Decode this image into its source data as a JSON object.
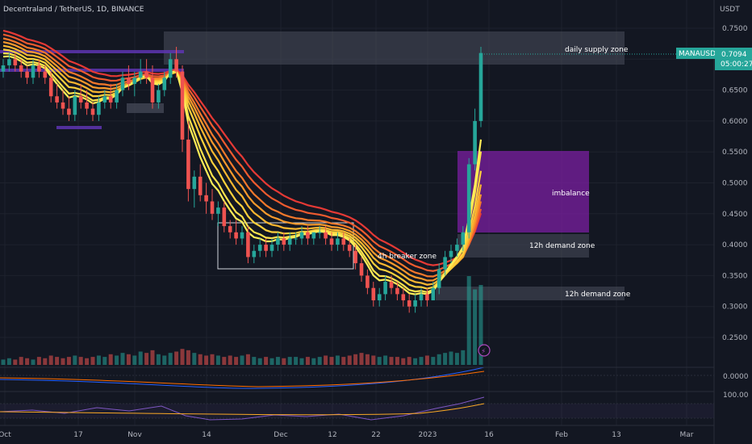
{
  "header": {
    "title": "Decentraland / TetherUS, 1D, BINANCE",
    "currency": "USDT"
  },
  "price_badge": {
    "symbol": "MANAUSDT",
    "price": "0.7094",
    "countdown": "05:00:27"
  },
  "macd_label": "0.0000",
  "rsi_label": "100.00",
  "colors": {
    "bull": "#26a69a",
    "bear": "#ef5350",
    "zone": "#4a4f5c",
    "imbalance": "#7b1fa2",
    "ribbon_outer": "#e53935",
    "ribbon_inner": "#ffee58",
    "grid": "#1e222d"
  },
  "annotations": {
    "supply": "daily supply zone",
    "imbalance": "imbalance",
    "demand_upper": "12h demand zone",
    "demand_lower": "12h demand zone",
    "breaker": "4h breaker zone"
  },
  "chart_data": {
    "type": "candlestick",
    "y_axis": {
      "ticks": [
        "0.7500",
        "0.7000",
        "0.6500",
        "0.6000",
        "0.5500",
        "0.5000",
        "0.4500",
        "0.4000",
        "0.3500",
        "0.3000",
        "0.2500"
      ],
      "ylim": [
        0.22,
        0.77
      ]
    },
    "x_axis": {
      "ticks": [
        "Oct",
        "17",
        "Nov",
        "14",
        "Dec",
        "12",
        "22",
        "2023",
        "16",
        "Feb",
        "13",
        "Mar"
      ]
    },
    "ohlc": [
      [
        0.68,
        0.7,
        0.67,
        0.69
      ],
      [
        0.69,
        0.71,
        0.68,
        0.7
      ],
      [
        0.7,
        0.71,
        0.68,
        0.69
      ],
      [
        0.69,
        0.7,
        0.67,
        0.68
      ],
      [
        0.68,
        0.69,
        0.66,
        0.67
      ],
      [
        0.67,
        0.7,
        0.66,
        0.69
      ],
      [
        0.69,
        0.7,
        0.67,
        0.68
      ],
      [
        0.68,
        0.69,
        0.66,
        0.67
      ],
      [
        0.67,
        0.68,
        0.63,
        0.64
      ],
      [
        0.64,
        0.66,
        0.62,
        0.63
      ],
      [
        0.63,
        0.65,
        0.61,
        0.62
      ],
      [
        0.62,
        0.64,
        0.6,
        0.61
      ],
      [
        0.61,
        0.65,
        0.6,
        0.64
      ],
      [
        0.64,
        0.66,
        0.62,
        0.63
      ],
      [
        0.63,
        0.65,
        0.61,
        0.62
      ],
      [
        0.62,
        0.63,
        0.6,
        0.61
      ],
      [
        0.61,
        0.64,
        0.6,
        0.63
      ],
      [
        0.63,
        0.65,
        0.62,
        0.64
      ],
      [
        0.64,
        0.66,
        0.62,
        0.63
      ],
      [
        0.63,
        0.66,
        0.62,
        0.65
      ],
      [
        0.65,
        0.68,
        0.64,
        0.67
      ],
      [
        0.67,
        0.69,
        0.65,
        0.66
      ],
      [
        0.66,
        0.68,
        0.64,
        0.67
      ],
      [
        0.67,
        0.7,
        0.66,
        0.68
      ],
      [
        0.68,
        0.7,
        0.66,
        0.67
      ],
      [
        0.67,
        0.69,
        0.62,
        0.63
      ],
      [
        0.63,
        0.66,
        0.62,
        0.65
      ],
      [
        0.65,
        0.68,
        0.64,
        0.67
      ],
      [
        0.67,
        0.71,
        0.66,
        0.7
      ],
      [
        0.7,
        0.72,
        0.67,
        0.68
      ],
      [
        0.68,
        0.69,
        0.55,
        0.57
      ],
      [
        0.57,
        0.6,
        0.47,
        0.49
      ],
      [
        0.49,
        0.52,
        0.46,
        0.51
      ],
      [
        0.51,
        0.53,
        0.47,
        0.48
      ],
      [
        0.48,
        0.5,
        0.45,
        0.47
      ],
      [
        0.47,
        0.49,
        0.44,
        0.45
      ],
      [
        0.45,
        0.47,
        0.43,
        0.46
      ],
      [
        0.46,
        0.47,
        0.42,
        0.43
      ],
      [
        0.43,
        0.44,
        0.41,
        0.42
      ],
      [
        0.42,
        0.44,
        0.4,
        0.41
      ],
      [
        0.41,
        0.43,
        0.4,
        0.42
      ],
      [
        0.42,
        0.43,
        0.37,
        0.38
      ],
      [
        0.38,
        0.4,
        0.37,
        0.39
      ],
      [
        0.39,
        0.41,
        0.38,
        0.4
      ],
      [
        0.4,
        0.41,
        0.38,
        0.39
      ],
      [
        0.39,
        0.41,
        0.38,
        0.4
      ],
      [
        0.4,
        0.42,
        0.39,
        0.41
      ],
      [
        0.41,
        0.42,
        0.39,
        0.4
      ],
      [
        0.4,
        0.42,
        0.39,
        0.41
      ],
      [
        0.41,
        0.42,
        0.4,
        0.41
      ],
      [
        0.41,
        0.43,
        0.4,
        0.42
      ],
      [
        0.42,
        0.43,
        0.4,
        0.41
      ],
      [
        0.41,
        0.42,
        0.4,
        0.42
      ],
      [
        0.42,
        0.43,
        0.41,
        0.42
      ],
      [
        0.42,
        0.43,
        0.4,
        0.41
      ],
      [
        0.41,
        0.42,
        0.39,
        0.4
      ],
      [
        0.4,
        0.42,
        0.39,
        0.41
      ],
      [
        0.41,
        0.42,
        0.39,
        0.4
      ],
      [
        0.4,
        0.41,
        0.38,
        0.39
      ],
      [
        0.39,
        0.4,
        0.36,
        0.37
      ],
      [
        0.37,
        0.38,
        0.34,
        0.35
      ],
      [
        0.35,
        0.36,
        0.32,
        0.33
      ],
      [
        0.33,
        0.34,
        0.3,
        0.31
      ],
      [
        0.31,
        0.33,
        0.3,
        0.32
      ],
      [
        0.32,
        0.35,
        0.31,
        0.34
      ],
      [
        0.34,
        0.35,
        0.32,
        0.33
      ],
      [
        0.33,
        0.34,
        0.31,
        0.32
      ],
      [
        0.32,
        0.33,
        0.3,
        0.31
      ],
      [
        0.31,
        0.32,
        0.29,
        0.3
      ],
      [
        0.3,
        0.32,
        0.29,
        0.31
      ],
      [
        0.31,
        0.33,
        0.3,
        0.32
      ],
      [
        0.32,
        0.33,
        0.3,
        0.31
      ],
      [
        0.31,
        0.34,
        0.31,
        0.33
      ],
      [
        0.33,
        0.37,
        0.32,
        0.36
      ],
      [
        0.36,
        0.39,
        0.35,
        0.38
      ],
      [
        0.38,
        0.4,
        0.37,
        0.39
      ],
      [
        0.39,
        0.41,
        0.38,
        0.4
      ],
      [
        0.4,
        0.43,
        0.39,
        0.42
      ],
      [
        0.42,
        0.54,
        0.41,
        0.53
      ],
      [
        0.53,
        0.62,
        0.52,
        0.6
      ],
      [
        0.6,
        0.72,
        0.59,
        0.71
      ]
    ],
    "volume": [
      0.2,
      0.25,
      0.2,
      0.3,
      0.25,
      0.2,
      0.3,
      0.25,
      0.35,
      0.3,
      0.25,
      0.3,
      0.35,
      0.3,
      0.25,
      0.3,
      0.35,
      0.3,
      0.4,
      0.35,
      0.45,
      0.4,
      0.35,
      0.5,
      0.45,
      0.55,
      0.4,
      0.35,
      0.45,
      0.5,
      0.6,
      0.55,
      0.45,
      0.4,
      0.35,
      0.4,
      0.35,
      0.3,
      0.35,
      0.3,
      0.35,
      0.4,
      0.3,
      0.25,
      0.3,
      0.25,
      0.3,
      0.25,
      0.3,
      0.3,
      0.25,
      0.3,
      0.25,
      0.3,
      0.35,
      0.3,
      0.35,
      0.3,
      0.35,
      0.4,
      0.45,
      0.4,
      0.35,
      0.3,
      0.35,
      0.3,
      0.3,
      0.25,
      0.3,
      0.25,
      0.3,
      0.35,
      0.3,
      0.4,
      0.45,
      0.5,
      0.45,
      0.55,
      1.0,
      0.85,
      0.9
    ]
  }
}
